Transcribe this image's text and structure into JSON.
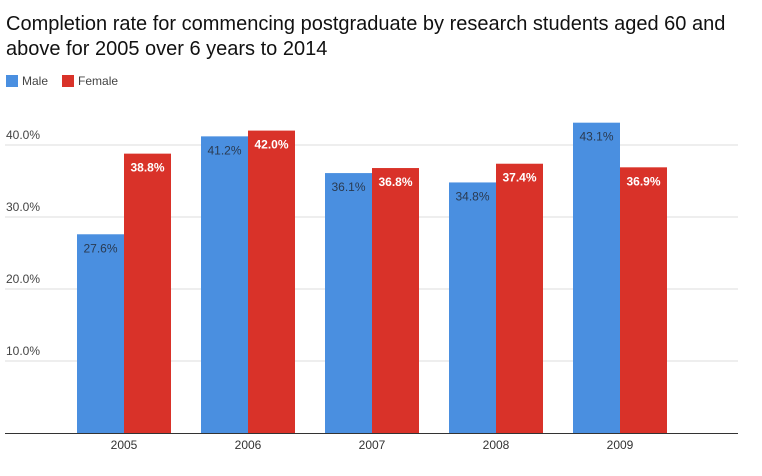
{
  "chart_data": {
    "type": "bar",
    "title": "Completion rate for commencing postgraduate by research students aged 60 and above for 2005 over 6 years to 2014",
    "categories": [
      "2005",
      "2006",
      "2007",
      "2008",
      "2009"
    ],
    "series": [
      {
        "name": "Male",
        "color": "#4a8fe0",
        "values": [
          27.6,
          41.2,
          36.1,
          34.8,
          43.1
        ],
        "labels": [
          "27.6%",
          "41.2%",
          "36.1%",
          "34.8%",
          "43.1%"
        ]
      },
      {
        "name": "Female",
        "color": "#d93229",
        "values": [
          38.8,
          42.0,
          36.8,
          37.4,
          36.9
        ],
        "labels": [
          "38.8%",
          "42.0%",
          "36.8%",
          "37.4%",
          "36.9%"
        ]
      }
    ],
    "yticks": [
      10,
      20,
      30,
      40
    ],
    "ytick_labels": [
      "10.0%",
      "20.0%",
      "30.0%",
      "40.0%"
    ],
    "ylim": [
      0,
      40
    ],
    "grid": true,
    "legend": "top-left"
  }
}
